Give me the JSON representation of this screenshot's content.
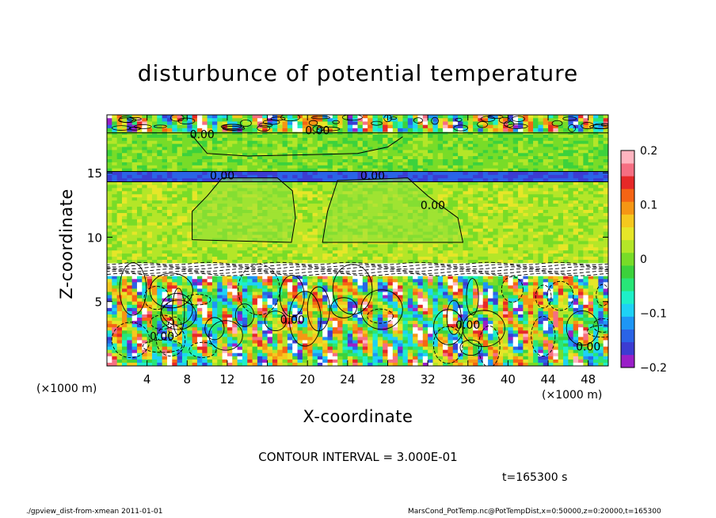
{
  "page": {
    "title": "disturbunce of potential temperature",
    "xlabel": "X-coordinate",
    "ylabel": "Z-coordinate",
    "x_unit_left": "(×1000 m)",
    "x_unit_right": "(×1000 m)",
    "contour_interval": "CONTOUR INTERVAL = 3.000E-01",
    "time_label": "t=165300 s",
    "footer_left": "./gpview_dist-from-xmean  2011-01-01",
    "footer_right": "MarsCond_PotTemp.nc@PotTempDist,x=0:50000,z=0:20000,t=165300"
  },
  "chart_data": {
    "type": "heatmap",
    "title": "disturbunce of potential temperature",
    "xlabel": "X-coordinate",
    "ylabel": "Z-coordinate",
    "x_unit": "(×1000 m)",
    "xlim": [
      0,
      50
    ],
    "ylim": [
      0,
      19.5
    ],
    "x_ticks": [
      4,
      8,
      12,
      16,
      20,
      24,
      28,
      32,
      36,
      40,
      44,
      48
    ],
    "y_ticks": [
      5,
      10,
      15
    ],
    "colorbar": {
      "range": [
        -0.2,
        0.2
      ],
      "tick_values": [
        -0.2,
        -0.1,
        0,
        0.1,
        0.2
      ],
      "tick_labels": [
        "−0.2",
        "−0.1",
        "0",
        "0.1",
        "0.2"
      ],
      "colors": [
        "#9a1fc8",
        "#3c3cd2",
        "#2a64e6",
        "#1e96f5",
        "#1ed2f5",
        "#1ef0c8",
        "#28e678",
        "#3cd23c",
        "#78dc28",
        "#b4e628",
        "#e6e628",
        "#f5c81e",
        "#f59614",
        "#f56414",
        "#e62828",
        "#f56e82",
        "#ffb4c0"
      ]
    },
    "bands": [
      {
        "z_min": 0,
        "z_max": 7,
        "pattern": "turbulent",
        "min_value": -0.2,
        "max_value": 0.2
      },
      {
        "z_min": 7,
        "z_max": 8,
        "pattern": "strong negative",
        "value": -0.3
      },
      {
        "z_min": 8,
        "z_max": 14.3,
        "pattern": "near zero",
        "value": 0.02
      },
      {
        "z_min": 14.3,
        "z_max": 15.1,
        "pattern": "negative layer",
        "value": -0.15
      },
      {
        "z_min": 15.1,
        "z_max": 18.2,
        "pattern": "near zero",
        "value": 0.0
      },
      {
        "z_min": 18.2,
        "z_max": 19.5,
        "pattern": "turbulent",
        "min_value": -0.2,
        "max_value": 0.2
      }
    ],
    "contour_labels": [
      {
        "x": 11.5,
        "z": 14.8,
        "text": "0.00"
      },
      {
        "x": 26.5,
        "z": 14.8,
        "text": "0.00"
      },
      {
        "x": 32.5,
        "z": 12.5,
        "text": "0.00"
      },
      {
        "x": 9.5,
        "z": 18.0,
        "text": "0.00"
      },
      {
        "x": 21.0,
        "z": 18.3,
        "text": "0.00"
      },
      {
        "x": 5.5,
        "z": 2.3,
        "text": "0.00"
      },
      {
        "x": 18.5,
        "z": 3.6,
        "text": "0.00"
      },
      {
        "x": 36.0,
        "z": 3.2,
        "text": "0.00"
      },
      {
        "x": 48.0,
        "z": 1.5,
        "text": "0.00"
      }
    ]
  }
}
